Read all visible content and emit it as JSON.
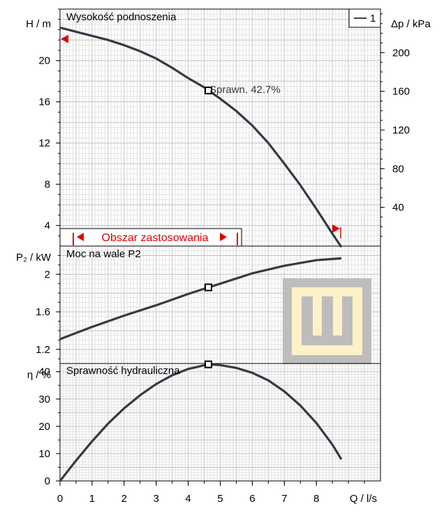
{
  "colors": {
    "curve": "#333a45",
    "grid_minor": "#e3e3e3",
    "grid_major": "#c2c2c2",
    "accent_red": "#e00000",
    "logo_gray": "#bdbdbd",
    "logo_cream": "#fdf1c7"
  },
  "legend": {
    "label": "1"
  },
  "logo": {
    "name": "wilo-style-logo-icon"
  },
  "x_axis": {
    "label": "Q / l/s",
    "ticks": [
      "0",
      "1",
      "2",
      "3",
      "4",
      "5",
      "6",
      "7",
      "8"
    ]
  },
  "chart_data": [
    {
      "type": "line",
      "title": "Wysokość podnoszenia",
      "ylabel_left": "H / m",
      "ylabel_right": "Δp / kPa",
      "y_ticks_left": [
        "4",
        "8",
        "12",
        "16",
        "20"
      ],
      "y_ticks_right": [
        "40",
        "80",
        "120",
        "160",
        "200"
      ],
      "xlim": [
        0,
        10
      ],
      "ylim": [
        2,
        25
      ],
      "y2lim": [
        0,
        245
      ],
      "series": [
        {
          "name": "1",
          "x": [
            0,
            0.5,
            1,
            1.5,
            2,
            2.5,
            3,
            3.5,
            4,
            4.5,
            4.63,
            5,
            5.5,
            6,
            6.5,
            7,
            7.5,
            8,
            8.5,
            8.78
          ],
          "y": [
            23.2,
            22.8,
            22.4,
            22.0,
            21.5,
            20.9,
            20.2,
            19.3,
            18.3,
            17.4,
            17.1,
            16.3,
            15.1,
            13.7,
            12.0,
            10.0,
            7.9,
            5.6,
            3.2,
            1.9
          ]
        }
      ],
      "operating_point": {
        "x": 4.63,
        "y": 17.1
      },
      "annotation": "Sprawn.  42.7%",
      "range_label": "Obszar zastosowania",
      "range_markers": [
        {
          "x": 0,
          "y": 22.1,
          "direction": "left"
        },
        {
          "x": 8.78,
          "y": 3.7,
          "direction": "right"
        }
      ]
    },
    {
      "type": "line",
      "title": "Moc na wale P2",
      "ylabel": "P₂ / kW",
      "y_ticks": [
        "1.2",
        "1.6",
        "2"
      ],
      "xlim": [
        0,
        10
      ],
      "ylim": [
        1.05,
        2.3
      ],
      "series": [
        {
          "name": "1",
          "x": [
            0,
            1,
            2,
            3,
            4,
            4.63,
            5,
            6,
            7,
            8,
            8.78
          ],
          "y": [
            1.31,
            1.44,
            1.56,
            1.67,
            1.79,
            1.86,
            1.9,
            2.01,
            2.09,
            2.15,
            2.17
          ]
        }
      ],
      "operating_point": {
        "x": 4.63,
        "y": 1.86
      }
    },
    {
      "type": "line",
      "title": "Sprawność hydrauliczna",
      "ylabel": "η / %",
      "y_ticks": [
        "0",
        "10",
        "20",
        "30",
        "40"
      ],
      "xlim": [
        0,
        10
      ],
      "ylim": [
        0,
        43
      ],
      "series": [
        {
          "name": "1",
          "x": [
            0,
            0.5,
            1,
            1.5,
            2,
            2.5,
            3,
            3.5,
            4,
            4.63,
            5,
            5.5,
            6,
            6.5,
            7,
            7.5,
            8,
            8.5,
            8.78
          ],
          "y": [
            0,
            7.5,
            14.5,
            21.0,
            26.6,
            31.4,
            35.5,
            38.7,
            41.0,
            42.7,
            42.4,
            41.4,
            39.6,
            36.8,
            32.8,
            27.6,
            21.2,
            13.3,
            7.9
          ]
        }
      ],
      "operating_point": {
        "x": 4.63,
        "y": 42.7
      }
    }
  ]
}
